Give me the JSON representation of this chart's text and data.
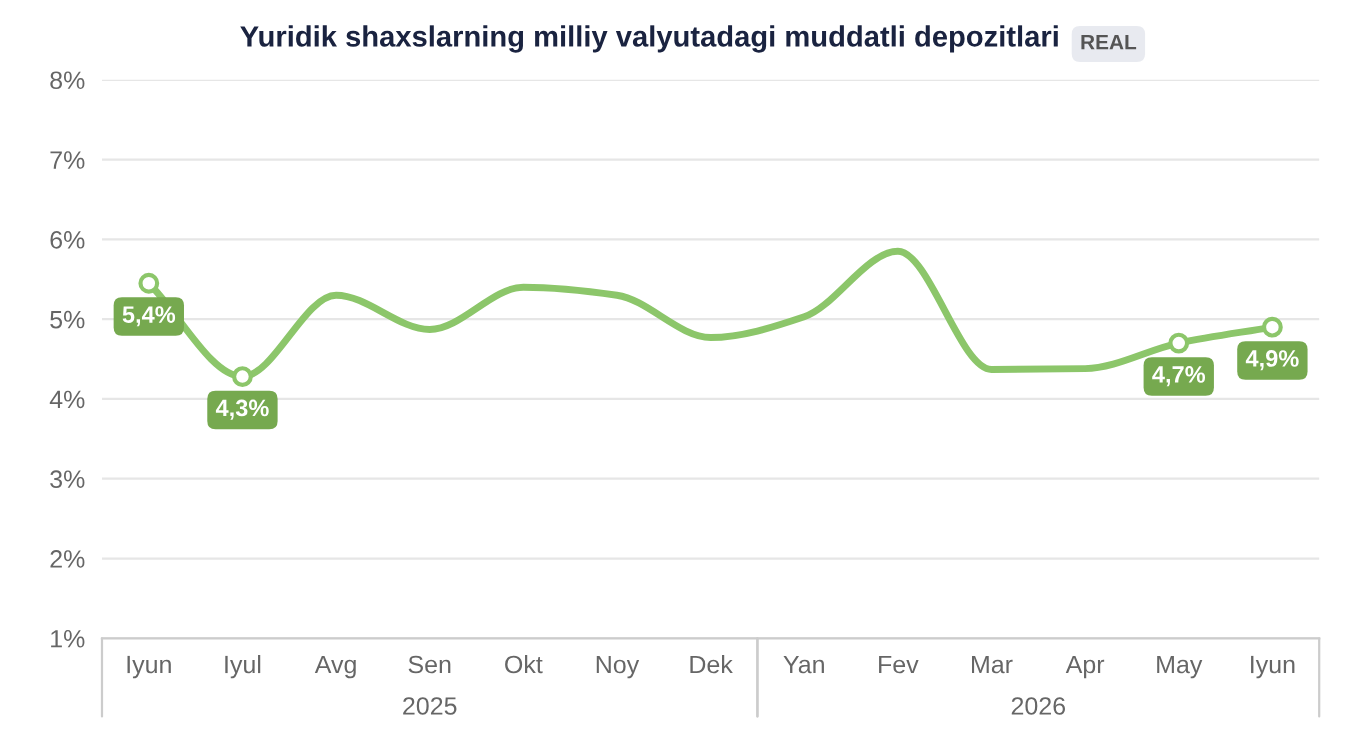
{
  "chart_data": {
    "type": "line",
    "title": "Yuridik shaxslarning milliy valyutadagi muddatli depozitlari",
    "categories": [
      "Iyun",
      "Iyul",
      "Avg",
      "Sen",
      "Okt",
      "Noy",
      "Dek",
      "Yan",
      "Fev",
      "Mar",
      "Apr",
      "May",
      "Iyun"
    ],
    "series": [
      {
        "color": "#8cc66a",
        "values": [
          5.45,
          4.28,
          5.3,
          4.87,
          5.4,
          5.3,
          4.77,
          5.03,
          5.85,
          4.37,
          4.38,
          4.7,
          4.9
        ],
        "value_labels": [
          "5,4%",
          "4,3%",
          null,
          null,
          null,
          null,
          null,
          null,
          null,
          null,
          null,
          "4,7%",
          "4,9%"
        ]
      }
    ],
    "ylim": [
      1,
      8
    ],
    "yticks": [
      {
        "value": 1,
        "label": "1%"
      },
      {
        "value": 2,
        "label": "2%"
      },
      {
        "value": 3,
        "label": "3%"
      },
      {
        "value": 4,
        "label": "4%"
      },
      {
        "value": 5,
        "label": "5%"
      },
      {
        "value": 6,
        "label": "6%"
      },
      {
        "value": 7,
        "label": "7%"
      },
      {
        "value": 8,
        "label": "8%"
      }
    ],
    "grid": "y",
    "annotations": [
      "REAL",
      "2025",
      "2026"
    ]
  }
}
